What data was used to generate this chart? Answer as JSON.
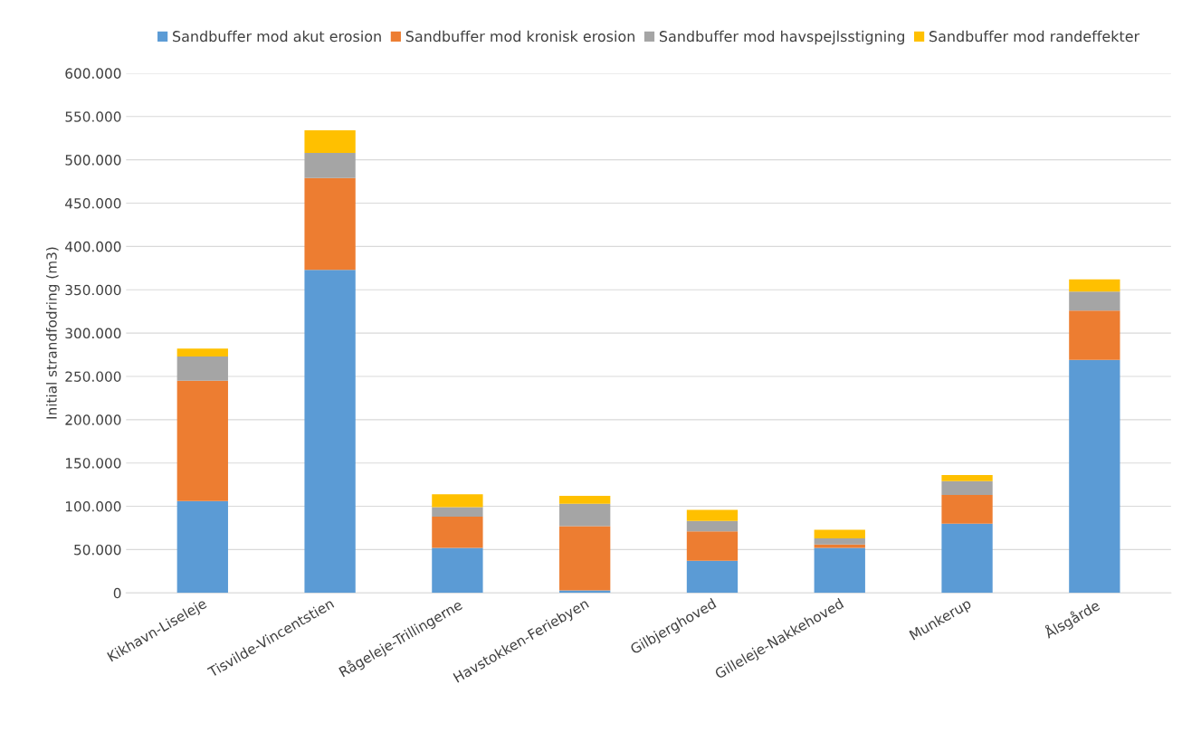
{
  "chart_data": {
    "type": "bar",
    "stacked": true,
    "ylabel": "Initial strandfodring (m3)",
    "categories": [
      "Kikhavn-Liseleje",
      "Tisvilde-Vincentstien",
      "Rågeleje-Trillingerne",
      "Havstokken-Feriebyen",
      "Gilbjerghoved",
      "Gilleleje-Nakkehoved",
      "Munkerup",
      "Ålsgårde"
    ],
    "series": [
      {
        "name": "Sandbuffer mod akut erosion",
        "color": "#5b9bd5",
        "values": [
          106000,
          373000,
          52000,
          3000,
          37000,
          52000,
          80000,
          269000
        ]
      },
      {
        "name": "Sandbuffer mod kronisk erosion",
        "color": "#ed7d31",
        "values": [
          139000,
          106000,
          36000,
          74000,
          34000,
          4000,
          33000,
          57000
        ]
      },
      {
        "name": "Sandbuffer mod havspejlsstigning",
        "color": "#a5a5a5",
        "values": [
          28000,
          29000,
          11000,
          26000,
          12000,
          7000,
          16000,
          22000
        ]
      },
      {
        "name": "Sandbuffer mod randeffekter",
        "color": "#ffc000",
        "values": [
          9000,
          26000,
          15000,
          9000,
          13000,
          10000,
          7000,
          14000
        ]
      }
    ],
    "ylim": [
      0,
      600000
    ],
    "yticks": [
      {
        "value": 0,
        "label": "0"
      },
      {
        "value": 50000,
        "label": "50.000"
      },
      {
        "value": 100000,
        "label": "100.000"
      },
      {
        "value": 150000,
        "label": "150.000"
      },
      {
        "value": 200000,
        "label": "200.000"
      },
      {
        "value": 250000,
        "label": "250.000"
      },
      {
        "value": 300000,
        "label": "300.000"
      },
      {
        "value": 350000,
        "label": "350.000"
      },
      {
        "value": 400000,
        "label": "400.000"
      },
      {
        "value": 450000,
        "label": "450.000"
      },
      {
        "value": 500000,
        "label": "500.000"
      },
      {
        "value": 550000,
        "label": "550.000"
      },
      {
        "value": 600000,
        "label": "600.000"
      }
    ],
    "grid": "y",
    "legend": "top"
  }
}
